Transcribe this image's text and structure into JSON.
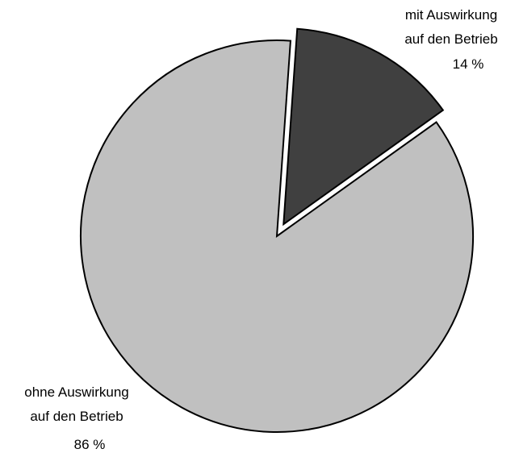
{
  "chart_data": {
    "type": "pie",
    "title": "",
    "slices": [
      {
        "label_lines": [
          "mit Auswirkung",
          "auf den Betrieb"
        ],
        "percent_label": "14 %",
        "value": 14,
        "color": "#404040",
        "exploded": true
      },
      {
        "label_lines": [
          "ohne Auswirkung",
          "auf den Betrieb"
        ],
        "percent_label": "86 %",
        "value": 86,
        "color": "#c0c0c0",
        "exploded": false
      }
    ]
  }
}
